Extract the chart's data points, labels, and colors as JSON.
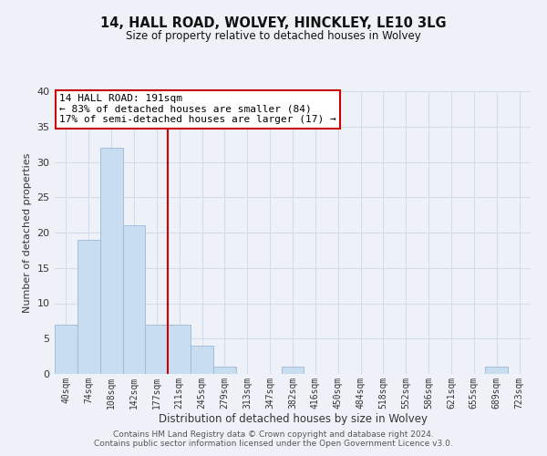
{
  "title": "14, HALL ROAD, WOLVEY, HINCKLEY, LE10 3LG",
  "subtitle": "Size of property relative to detached houses in Wolvey",
  "xlabel": "Distribution of detached houses by size in Wolvey",
  "ylabel": "Number of detached properties",
  "bar_labels": [
    "40sqm",
    "74sqm",
    "108sqm",
    "142sqm",
    "177sqm",
    "211sqm",
    "245sqm",
    "279sqm",
    "313sqm",
    "347sqm",
    "382sqm",
    "416sqm",
    "450sqm",
    "484sqm",
    "518sqm",
    "552sqm",
    "586sqm",
    "621sqm",
    "655sqm",
    "689sqm",
    "723sqm"
  ],
  "bar_values": [
    7,
    19,
    32,
    21,
    7,
    7,
    4,
    1,
    0,
    0,
    1,
    0,
    0,
    0,
    0,
    0,
    0,
    0,
    0,
    1,
    0
  ],
  "bar_color": "#c9ddf0",
  "bar_edge_color": "#9ab8d8",
  "vline_x_index": 4.5,
  "vline_color": "#cc0000",
  "annotation_title": "14 HALL ROAD: 191sqm",
  "annotation_line1": "← 83% of detached houses are smaller (84)",
  "annotation_line2": "17% of semi-detached houses are larger (17) →",
  "annotation_box_color": "#ffffff",
  "annotation_box_edge": "#cc0000",
  "ylim": [
    0,
    40
  ],
  "yticks": [
    0,
    5,
    10,
    15,
    20,
    25,
    30,
    35,
    40
  ],
  "grid_color": "#d4dce8",
  "background_color": "#eef2f8",
  "footer1": "Contains HM Land Registry data © Crown copyright and database right 2024.",
  "footer2": "Contains public sector information licensed under the Open Government Licence v3.0."
}
